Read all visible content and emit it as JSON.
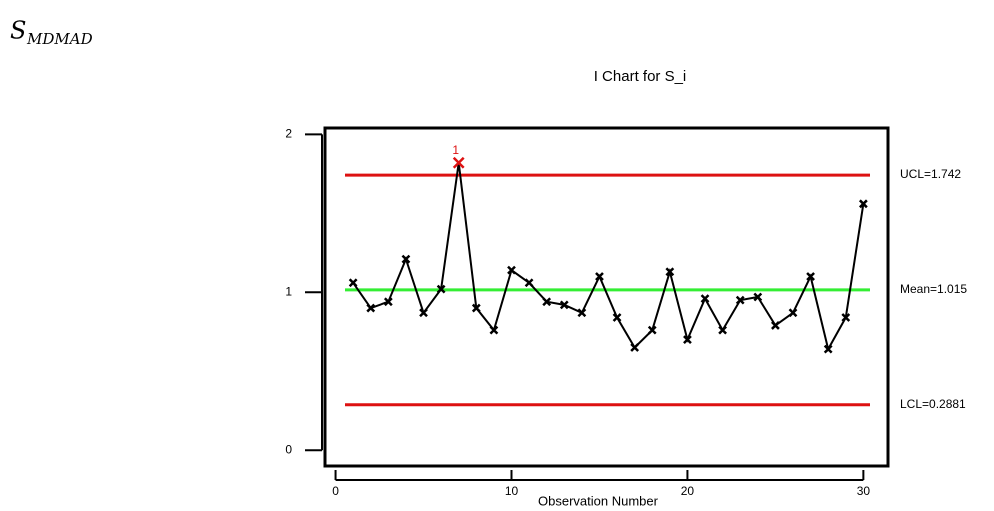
{
  "heading": {
    "symbol": "S",
    "subscript": "MDMAD"
  },
  "chart_data": {
    "type": "line",
    "title": "I Chart for S_i",
    "x_label": "Observation Number",
    "x": [
      1,
      2,
      3,
      4,
      5,
      6,
      7,
      8,
      9,
      10,
      11,
      12,
      13,
      14,
      15,
      16,
      17,
      18,
      19,
      20,
      21,
      22,
      23,
      24,
      25,
      26,
      27,
      28,
      29,
      30
    ],
    "series": [
      {
        "color": "#000000",
        "values": [
          1.06,
          0.9,
          0.94,
          1.21,
          0.87,
          1.02,
          1.82,
          0.9,
          0.76,
          1.14,
          1.06,
          0.94,
          0.92,
          0.87,
          1.1,
          0.84,
          0.65,
          0.76,
          1.13,
          0.7,
          0.96,
          0.76,
          0.95,
          0.97,
          0.79,
          0.87,
          1.1,
          0.64,
          0.84,
          1.56
        ]
      }
    ],
    "control_lines": [
      {
        "label": "UCL=1.742",
        "value": 1.742,
        "color": "#dd1111"
      },
      {
        "label": "Mean=1.015",
        "value": 1.015,
        "color": "#33ee33"
      },
      {
        "label": "LCL=0.2881",
        "value": 0.2881,
        "color": "#dd1111"
      }
    ],
    "annotations": [
      {
        "x": 7,
        "text": "1",
        "color": "#dd1111"
      }
    ],
    "xlim": [
      -0.6,
      31.4
    ],
    "ylim": [
      -0.1,
      2.04
    ],
    "xticks": [
      0,
      10,
      20,
      30
    ],
    "yticks": [
      0,
      1,
      2
    ]
  }
}
